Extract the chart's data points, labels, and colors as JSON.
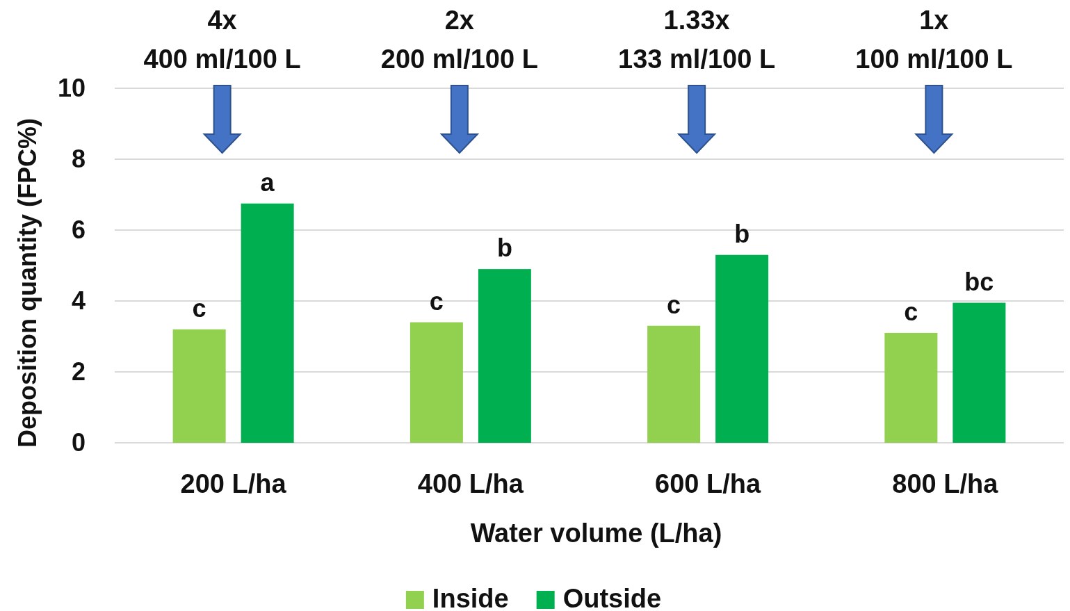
{
  "chart_data": {
    "type": "bar",
    "xlabel": "Water volume (L/ha)",
    "ylabel": "Deposition quantity (FPC%)",
    "categories": [
      "200 L/ha",
      "400 L/ha",
      "600 L/ha",
      "800 L/ha"
    ],
    "series": [
      {
        "name": "Inside",
        "color": "#92d050",
        "values": [
          3.2,
          3.4,
          3.3,
          3.1
        ]
      },
      {
        "name": "Outside",
        "color": "#00b050",
        "values": [
          6.75,
          4.9,
          5.3,
          3.95
        ]
      }
    ],
    "ylim": [
      0,
      10
    ],
    "yticks": [
      0,
      2,
      4,
      6,
      8,
      10
    ],
    "grid": "y",
    "legend": "bottom",
    "annotations": [
      "4x\n400 ml/100 L",
      "2x\n200 ml/100 L",
      "1.33x\n133 ml/100 L",
      "1x\n100 ml/100 L",
      "c",
      "a",
      "c",
      "b",
      "c",
      "b",
      "c",
      "bc"
    ]
  }
}
